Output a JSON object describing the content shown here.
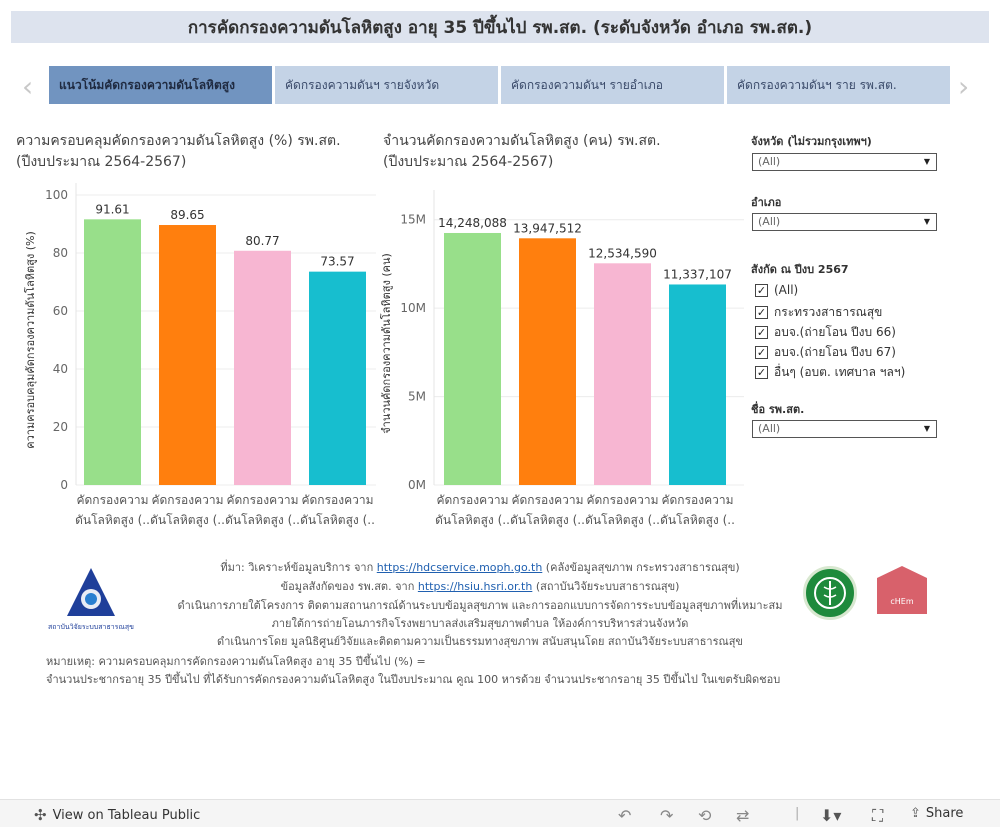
{
  "title": "การคัดกรองความดันโลหิตสูง อายุ 35 ปีขึ้นไป รพ.สต. (ระดับจังหวัด อำเภอ รพ.สต.)",
  "tabs": [
    {
      "label": "แนวโน้มคัดกรองความดันโลหิตสูง"
    },
    {
      "label": "คัดกรองความดันฯ รายจังหวัด"
    },
    {
      "label": "คัดกรองความดันฯ รายอำเภอ"
    },
    {
      "label": "คัดกรองความดันฯ ราย รพ.สต."
    }
  ],
  "nav": {
    "prev": "‹",
    "next": "›"
  },
  "chart_data": [
    {
      "type": "bar",
      "title_line1": "ความครอบคลุมคัดกรองความดันโลหิตสูง (%) รพ.สต.",
      "title_line2": "(ปีงบประมาณ 2564-2567)",
      "ylabel": "ความครอบคลุมคัดกรองความดันโลหิตสูง (%)",
      "ylim": [
        0,
        100
      ],
      "yticks": [
        "0",
        "20",
        "40",
        "60",
        "80",
        "100"
      ],
      "ytick_values": [
        0,
        20,
        40,
        60,
        80,
        100
      ],
      "categories_line1": [
        "คัดกรองความ",
        "คัดกรองความ",
        "คัดกรองความ",
        "คัดกรองความ"
      ],
      "categories_line2": [
        "ดันโลหิตสูง (..",
        "ดันโลหิตสูง (..",
        "ดันโลหิตสูง (..",
        "ดันโลหิตสูง (.."
      ],
      "values": [
        91.61,
        89.65,
        80.77,
        73.57
      ],
      "labels": [
        "91.61",
        "89.65",
        "80.77",
        "73.57"
      ],
      "colors": [
        "#98df8a",
        "#ff7f0e",
        "#f7b6d2",
        "#17becf"
      ]
    },
    {
      "type": "bar",
      "title_line1": "จำนวนคัดกรองความดันโลหิตสูง (คน) รพ.สต.",
      "title_line2": "(ปีงบประมาณ 2564-2567)",
      "ylabel": "จำนวนคัดกรองความดันโลหิตสูง (คน)",
      "ylim": [
        0,
        16000000
      ],
      "yticks": [
        "0M",
        "5M",
        "10M",
        "15M"
      ],
      "ytick_values": [
        0,
        5000000,
        10000000,
        15000000
      ],
      "categories_line1": [
        "คัดกรองความ",
        "คัดกรองความ",
        "คัดกรองความ",
        "คัดกรองความ"
      ],
      "categories_line2": [
        "ดันโลหิตสูง (..",
        "ดันโลหิตสูง (..",
        "ดันโลหิตสูง (..",
        "ดันโลหิตสูง (.."
      ],
      "values": [
        14248088,
        13947512,
        12534590,
        11337107
      ],
      "labels": [
        "14,248,088",
        "13,947,512",
        "12,534,590",
        "11,337,107"
      ],
      "colors": [
        "#98df8a",
        "#ff7f0e",
        "#f7b6d2",
        "#17becf"
      ]
    }
  ],
  "filters": {
    "province": {
      "label": "จังหวัด (ไม่รวมกรุงเทพฯ)",
      "value": "(All)"
    },
    "district": {
      "label": "อำเภอ",
      "value": "(All)"
    },
    "affiliation": {
      "label": "สังกัด ณ ปีงบ 2567",
      "options": [
        {
          "label": "(All)",
          "checked": "✓"
        },
        {
          "label": "กระทรวงสาธารณสุข",
          "checked": "✓"
        },
        {
          "label": "อบจ.(ถ่ายโอน ปีงบ 66)",
          "checked": "✓"
        },
        {
          "label": "อบจ.(ถ่ายโอน ปีงบ 67)",
          "checked": "✓"
        },
        {
          "label": "อื่นๆ (อบต. เทศบาล ฯลฯ)",
          "checked": "✓"
        }
      ]
    },
    "facility": {
      "label": "ชื่อ รพ.สต.",
      "value": "(All)"
    }
  },
  "footer": {
    "source_prefix": "ที่มา: วิเคราะห์ข้อมูลบริการ จาก ",
    "source_link": "https://hdcservice.moph.go.th",
    "source_suffix": " (คลังข้อมูลสุขภาพ กระทรวงสาธารณสุข)",
    "affil_prefix": "ข้อมูลสังกัดของ รพ.สต. จาก ",
    "affil_link": "https://hsiu.hsri.or.th",
    "affil_suffix": " (สถาบันวิจัยระบบสาธารณสุข)",
    "line3": "ดำเนินการภายใต้โครงการ ติดตามสถานการณ์ด้านระบบข้อมูลสุขภาพ และการออกแบบการจัดการระบบข้อมูลสุขภาพที่เหมาะสม",
    "line4": "ภายใต้การถ่ายโอนภารกิจโรงพยาบาลส่งเสริมสุขภาพตำบล ให้องค์การบริหารส่วนจังหวัด",
    "line5": "ดำเนินการโดย มูลนิธิศูนย์วิจัยและติดตามความเป็นธรรมทางสุขภาพ สนับสนุนโดย สถาบันวิจัยระบบสาธารณสุข",
    "note1": "หมายเหตุ: ความครอบคลุมการคัดกรองความดันโลหิตสูง อายุ 35 ปีขึ้นไป (%) =",
    "note2": "จำนวนประชากรอายุ 35 ปีขึ้นไป ที่ได้รับการคัดกรองความดันโลหิตสูง ในปีงบประมาณ คูณ 100 หารด้วย จำนวนประชากรอายุ 35 ปีขึ้นไป ในเขตรับผิดชอบ",
    "logo_left_text": "สถาบันวิจัยระบบสาธารณสุข",
    "logo_right_text": "cHEm"
  },
  "bottombar": {
    "view_label": "View on Tableau Public",
    "share_label": "Share"
  }
}
